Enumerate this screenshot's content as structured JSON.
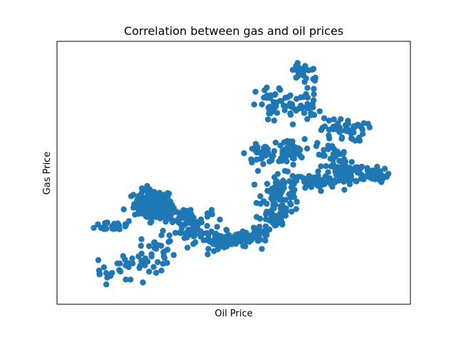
{
  "chart_data": {
    "type": "scatter",
    "title": "Correlation between gas and oil prices",
    "xlabel": "Oil Price",
    "ylabel": "Gas Price",
    "xticks": "hidden",
    "yticks": "hidden",
    "grid": false,
    "legend": "none",
    "xlim": [
      0,
      100
    ],
    "ylim": [
      0,
      100
    ],
    "marker_color": "#1f77b4",
    "clusters": [
      {
        "x": 25,
        "y": 37,
        "sx": 3.0,
        "sy": 3.0,
        "n": 140
      },
      {
        "x": 13,
        "y": 28,
        "sx": 3.0,
        "sy": 1.2,
        "n": 30
      },
      {
        "x": 28,
        "y": 33,
        "sx": 3.5,
        "sy": 1.5,
        "n": 45
      },
      {
        "x": 36,
        "y": 31,
        "sx": 3.5,
        "sy": 2.0,
        "n": 45
      },
      {
        "x": 45,
        "y": 22,
        "sx": 3.0,
        "sy": 1.8,
        "n": 40
      },
      {
        "x": 52,
        "y": 22,
        "sx": 3.0,
        "sy": 1.5,
        "n": 50
      },
      {
        "x": 58,
        "y": 25,
        "sx": 2.0,
        "sy": 2.0,
        "n": 30
      },
      {
        "x": 63,
        "y": 30,
        "sx": 2.0,
        "sy": 2.5,
        "n": 30
      },
      {
        "x": 65,
        "y": 41,
        "sx": 3.0,
        "sy": 4.0,
        "n": 90
      },
      {
        "x": 59,
        "y": 58,
        "sx": 2.5,
        "sy": 1.8,
        "n": 40
      },
      {
        "x": 67,
        "y": 59,
        "sx": 2.5,
        "sy": 2.5,
        "n": 50
      },
      {
        "x": 75,
        "y": 46,
        "sx": 3.0,
        "sy": 2.0,
        "n": 45
      },
      {
        "x": 85,
        "y": 50,
        "sx": 3.0,
        "sy": 2.5,
        "n": 90
      },
      {
        "x": 93,
        "y": 49,
        "sx": 2.5,
        "sy": 1.5,
        "n": 40
      },
      {
        "x": 84,
        "y": 68,
        "sx": 3.5,
        "sy": 2.5,
        "n": 50
      },
      {
        "x": 70,
        "y": 78,
        "sx": 3.5,
        "sy": 3.5,
        "n": 45
      },
      {
        "x": 62,
        "y": 78,
        "sx": 2.5,
        "sy": 4.0,
        "n": 30
      },
      {
        "x": 72,
        "y": 92,
        "sx": 2.5,
        "sy": 2.5,
        "n": 25
      },
      {
        "x": 20,
        "y": 12,
        "sx": 3.5,
        "sy": 3.0,
        "n": 25
      },
      {
        "x": 27,
        "y": 18,
        "sx": 3.0,
        "sy": 3.5,
        "n": 25
      },
      {
        "x": 10,
        "y": 8,
        "sx": 3.0,
        "sy": 2.5,
        "n": 12
      },
      {
        "x": 37,
        "y": 25,
        "sx": 3.0,
        "sy": 2.0,
        "n": 30
      },
      {
        "x": 80,
        "y": 58,
        "sx": 2.5,
        "sy": 2.0,
        "n": 25
      }
    ]
  }
}
